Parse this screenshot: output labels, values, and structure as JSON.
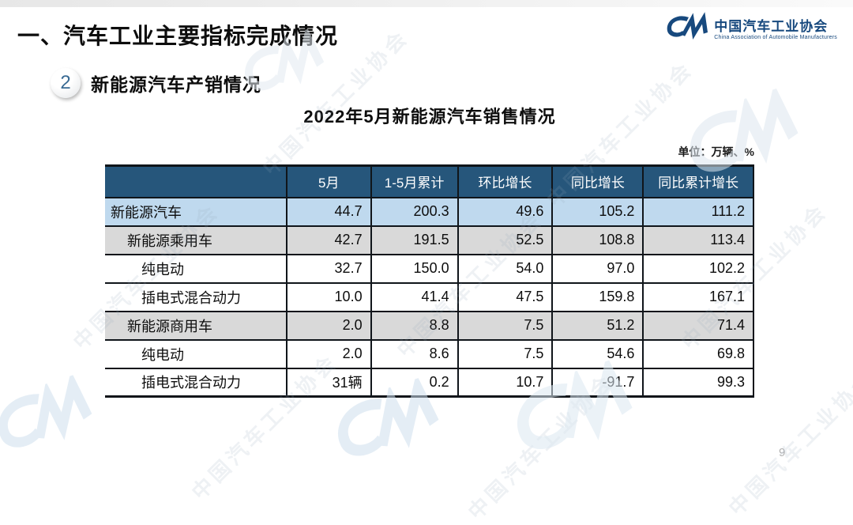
{
  "page": {
    "main_title": "一、汽车工业主要指标完成情况",
    "page_number": "9"
  },
  "logo": {
    "icon": "caam-cm-logo",
    "name_zh": "中国汽车工业协会",
    "name_en": "China Association of Automobile Manufacturers"
  },
  "subsection": {
    "badge_number": "2",
    "title": "新能源汽车产销情况"
  },
  "table": {
    "title": "2022年5月新能源汽车销售情况",
    "unit_note": "单位：万辆、%",
    "columns": [
      "",
      "5月",
      "1-5月累计",
      "环比增长",
      "同比增长",
      "同比累计增长"
    ],
    "rows": [
      {
        "label": "新能源汽车",
        "indent": 0,
        "style": "highlight-blue",
        "values": [
          "44.7",
          "200.3",
          "49.6",
          "105.2",
          "111.2"
        ]
      },
      {
        "label": "新能源乘用车",
        "indent": 1,
        "style": "highlight-gray",
        "values": [
          "42.7",
          "191.5",
          "52.5",
          "108.8",
          "113.4"
        ]
      },
      {
        "label": "纯电动",
        "indent": 2,
        "style": "plain",
        "values": [
          "32.7",
          "150.0",
          "54.0",
          "97.0",
          "102.2"
        ]
      },
      {
        "label": "插电式混合动力",
        "indent": 2,
        "style": "plain",
        "values": [
          "10.0",
          "41.4",
          "47.5",
          "159.8",
          "167.1"
        ]
      },
      {
        "label": "新能源商用车",
        "indent": 1,
        "style": "highlight-gray",
        "values": [
          "2.0",
          "8.8",
          "7.5",
          "51.2",
          "71.4"
        ]
      },
      {
        "label": "纯电动",
        "indent": 2,
        "style": "plain",
        "values": [
          "2.0",
          "8.6",
          "7.5",
          "54.6",
          "69.8"
        ]
      },
      {
        "label": "插电式混合动力",
        "indent": 2,
        "style": "plain",
        "values": [
          "31辆",
          "0.2",
          "10.7",
          "-91.7",
          "99.3"
        ]
      }
    ]
  },
  "colors": {
    "header_bg": "#26567b",
    "row_blue": "#bfd9ee",
    "row_gray": "#d9d9d9",
    "brand_blue": "#17497e"
  },
  "watermark": {
    "text": "中国汽车工业协会"
  }
}
